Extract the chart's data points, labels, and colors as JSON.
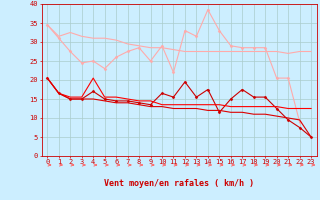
{
  "title": "",
  "xlabel": "Vent moyen/en rafales ( km/h )",
  "x": [
    0,
    1,
    2,
    3,
    4,
    5,
    6,
    7,
    8,
    9,
    10,
    11,
    12,
    13,
    14,
    15,
    16,
    17,
    18,
    19,
    20,
    21,
    22,
    23
  ],
  "lines": [
    {
      "y": [
        34.5,
        31.5,
        32.5,
        31.5,
        31.0,
        31.0,
        30.5,
        29.5,
        29.0,
        28.5,
        28.5,
        28.0,
        27.5,
        27.5,
        27.5,
        27.5,
        27.5,
        27.5,
        27.5,
        27.5,
        27.5,
        27.0,
        27.5,
        27.5
      ],
      "color": "#ffaaaa",
      "lw": 0.8,
      "marker": null
    },
    {
      "y": [
        34.5,
        31.0,
        27.5,
        24.5,
        25.0,
        23.0,
        26.0,
        27.5,
        28.5,
        25.0,
        29.0,
        22.0,
        33.0,
        31.5,
        38.5,
        33.0,
        29.0,
        28.5,
        28.5,
        28.5,
        20.5,
        20.5,
        9.0,
        null
      ],
      "color": "#ffaaaa",
      "lw": 0.8,
      "marker": "D",
      "markersize": 1.5
    },
    {
      "y": [
        20.5,
        16.5,
        15.0,
        15.0,
        17.0,
        15.0,
        14.5,
        14.5,
        14.0,
        13.5,
        16.5,
        15.5,
        19.5,
        15.5,
        17.5,
        11.5,
        15.0,
        17.5,
        15.5,
        15.5,
        12.5,
        9.5,
        7.5,
        5.0
      ],
      "color": "#cc0000",
      "lw": 0.8,
      "marker": "D",
      "markersize": 1.5
    },
    {
      "y": [
        20.5,
        16.5,
        15.5,
        15.5,
        20.5,
        15.5,
        15.5,
        15.0,
        14.5,
        14.5,
        13.5,
        13.5,
        13.5,
        13.5,
        13.5,
        13.5,
        13.0,
        13.0,
        13.0,
        13.0,
        13.0,
        12.5,
        12.5,
        12.5
      ],
      "color": "#ff0000",
      "lw": 0.8,
      "marker": null
    },
    {
      "y": [
        20.5,
        16.5,
        15.0,
        15.0,
        15.0,
        14.5,
        14.0,
        14.0,
        13.5,
        13.0,
        13.0,
        12.5,
        12.5,
        12.5,
        12.0,
        12.0,
        11.5,
        11.5,
        11.0,
        11.0,
        10.5,
        10.0,
        9.5,
        5.0
      ],
      "color": "#dd0000",
      "lw": 0.8,
      "marker": null
    }
  ],
  "arrow_color": "#ff6666",
  "ylim": [
    0,
    40
  ],
  "yticks": [
    0,
    5,
    10,
    15,
    20,
    25,
    30,
    35,
    40
  ],
  "bg_color": "#cceeff",
  "grid_color": "#aacccc",
  "axis_color": "#cc0000",
  "xlabel_color": "#cc0000",
  "tick_color": "#cc0000",
  "xlabel_fontsize": 6,
  "tick_fontsize": 5
}
